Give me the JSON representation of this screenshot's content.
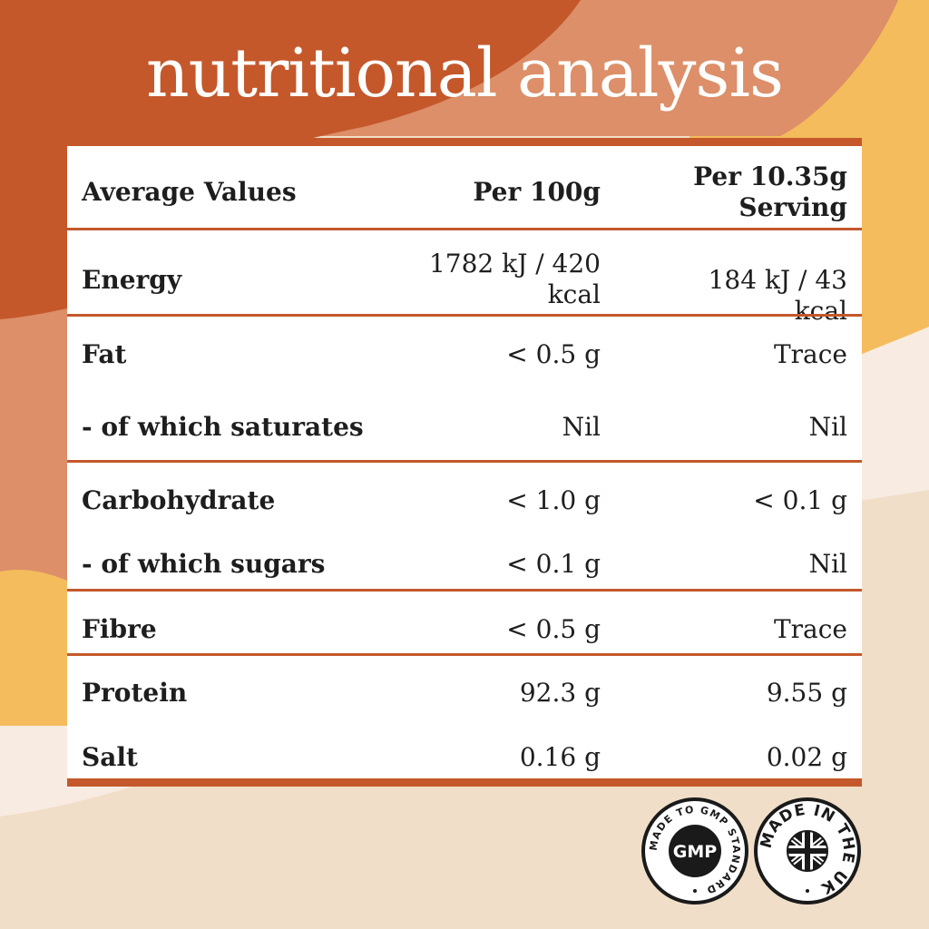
{
  "title": "nutritional analysis",
  "colors": {
    "accent": "#c4582b",
    "peach": "#dc8f68",
    "gold": "#f4bc5c",
    "cream": "#f8ebe1",
    "sand": "#f1dec8"
  },
  "table": {
    "headers": {
      "label": "Average Values",
      "per100": "Per 100g",
      "perServingLine1": "Per 10.35g",
      "perServingLine2": "Serving"
    },
    "rows": [
      {
        "label": "Energy",
        "per100Line1": "1782 kJ / 420",
        "per100Line2": "kcal",
        "perServing": "184 kJ / 43 kcal"
      },
      {
        "label": "Fat",
        "per100": "< 0.5 g",
        "perServing": "Trace"
      },
      {
        "label": "- of which saturates",
        "per100": "Nil",
        "perServing": "Nil"
      },
      {
        "label": "Carbohydrate",
        "per100": "< 1.0 g",
        "perServing": "< 0.1 g"
      },
      {
        "label": "- of which sugars",
        "per100": "< 0.1 g",
        "perServing": "Nil"
      },
      {
        "label": "Fibre",
        "per100": "< 0.5 g",
        "perServing": "Trace"
      },
      {
        "label": "Protein",
        "per100": "92.3 g",
        "perServing": "9.55 g"
      },
      {
        "label": "Salt",
        "per100": "0.16 g",
        "perServing": "0.02 g"
      }
    ]
  },
  "badges": {
    "gmp": {
      "center": "GMP",
      "ring": "MADE TO GMP STANDARD"
    },
    "uk": {
      "ring": "MADE IN THE UK"
    }
  }
}
